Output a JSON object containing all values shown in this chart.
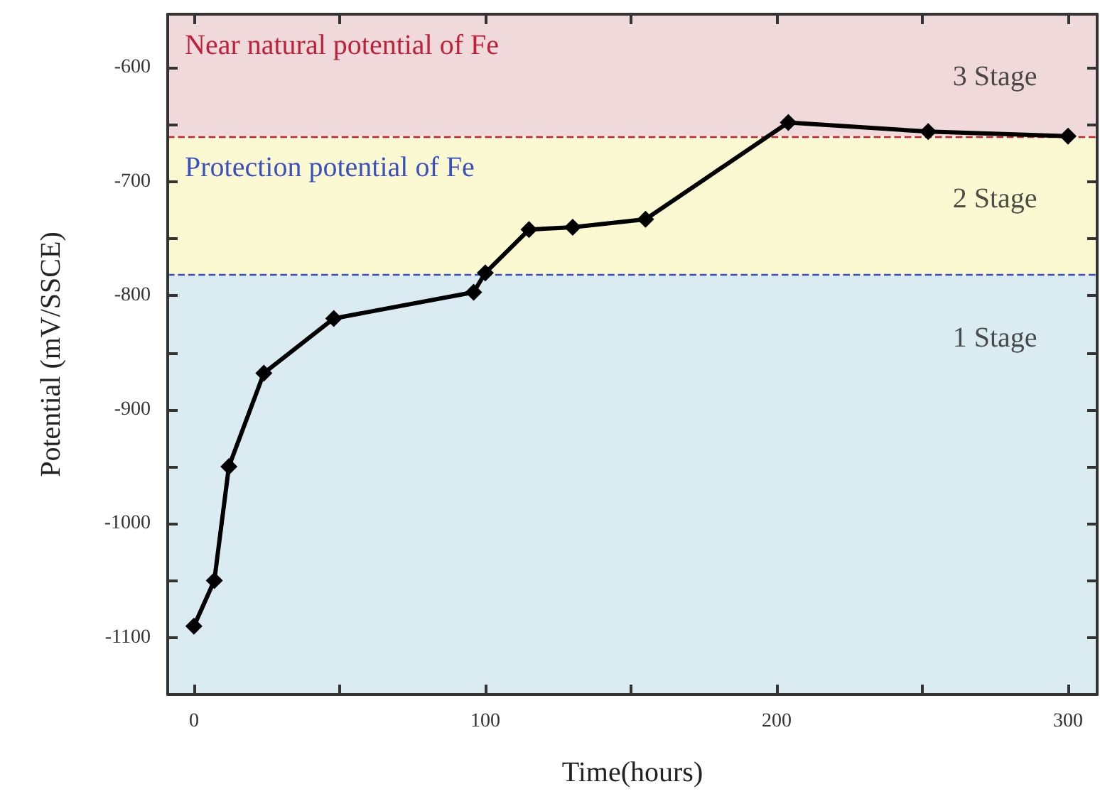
{
  "chart_data": {
    "type": "line",
    "xlabel": "Time(hours)",
    "ylabel": "Potential (mV/SSCE)",
    "x": [
      0,
      7,
      12,
      24,
      48,
      96,
      100,
      115,
      130,
      155,
      204,
      252,
      300
    ],
    "series": [
      {
        "color": "#000000",
        "values": [
          -1090,
          -1050,
          -950,
          -868,
          -820,
          -797,
          -780,
          -742,
          -740,
          -733,
          -648,
          -656,
          -660
        ]
      }
    ],
    "marker": "diamond",
    "line_style": "solid",
    "xlim": [
      -9,
      310
    ],
    "ylim": [
      -1150,
      -553
    ],
    "xticks": [
      0,
      {
        "value": 50,
        "label": null
      },
      100,
      {
        "value": 150,
        "label": null
      },
      200,
      {
        "value": 250,
        "label": null
      },
      300
    ],
    "yticks": [
      -1100,
      {
        "value": -1050,
        "label": null
      },
      -1000,
      {
        "value": -950,
        "label": null
      },
      -900,
      {
        "value": -850,
        "label": null
      },
      -800,
      {
        "value": -750,
        "label": null
      },
      -700,
      {
        "value": -650,
        "label": null
      },
      -600
    ],
    "bands": [
      {
        "axis": "y",
        "from": -660,
        "to": -553,
        "label": "Near natural potential of Fe",
        "color": "#efd9da"
      },
      {
        "axis": "y",
        "from": -782,
        "to": -660,
        "label": "Protection potential of Fe",
        "color": "#fbf9d2"
      },
      {
        "axis": "y",
        "from": -1150,
        "to": -782,
        "color": "#dbebf2"
      }
    ],
    "ref_lines": [
      {
        "axis": "y",
        "value": -660,
        "color": "#c0203a",
        "line_style": "dashed"
      },
      {
        "axis": "y",
        "value": -782,
        "color": "#3a4fc0",
        "line_style": "dashed"
      }
    ],
    "annotations": [
      "3 Stage",
      "2 Stage",
      "1 Stage"
    ],
    "grid": false
  }
}
